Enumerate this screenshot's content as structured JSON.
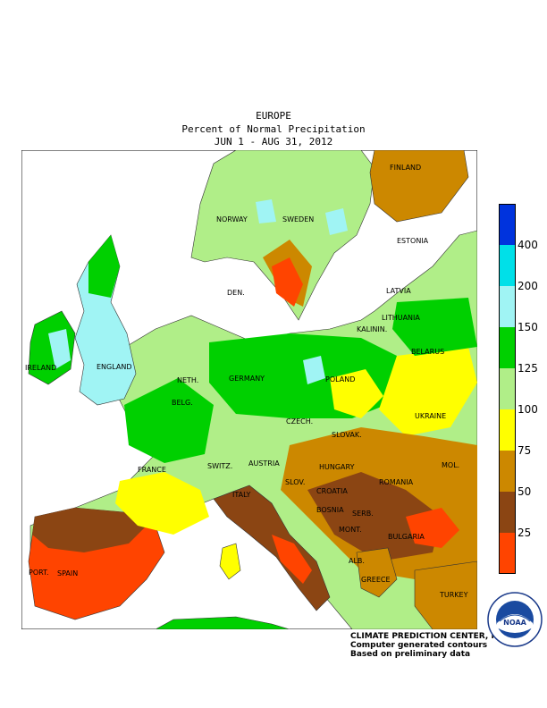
{
  "header": {
    "region": "EUROPE",
    "subtitle": "Percent of Normal Precipitation",
    "period": "JUN  1 - AUG 31, 2012"
  },
  "legend": {
    "ticks": [
      "400",
      "200",
      "150",
      "125",
      "100",
      "75",
      "50",
      "25"
    ],
    "colors": [
      "#0033dd",
      "#00e0e8",
      "#a0f4f4",
      "#00d000",
      "#b0ee88",
      "#ffff00",
      "#cc8800",
      "#8b4513",
      "#ff4400"
    ]
  },
  "map_labels": {
    "finland": "FINLAND",
    "norway": "NORWAY",
    "sweden": "SWEDEN",
    "estonia": "ESTONIA",
    "latvia": "LATVIA",
    "lithuania": "LITHUANIA",
    "belarus": "BELARUS",
    "ireland": "IRELAND",
    "england": "ENGLAND",
    "neth": "NETH.",
    "belg": "BELG.",
    "germany": "GERMANY",
    "poland": "POLAND",
    "czech": "CZECH.",
    "slovak": "SLOVAK.",
    "ukraine": "UKRAINE",
    "france": "FRANCE",
    "switz": "SWITZ.",
    "austria": "AUSTRIA",
    "hungary": "HUNGARY",
    "mol": "MOL.",
    "romania": "ROMANIA",
    "slov": "SLOV.",
    "croatia": "CROATIA",
    "bosnia": "BOSNIA",
    "serb": "SERB.",
    "mont": "MONT.",
    "bulgaria": "BULGARIA",
    "italy": "ITALY",
    "port": "PORT.",
    "spain": "SPAIN",
    "alb": "ALB.",
    "greece": "GREECE",
    "turkey": "TURKEY",
    "den": "DEN.",
    "kalinin": "KALININ."
  },
  "credit": {
    "line1": "CLIMATE PREDICTION CENTER, NOAA",
    "line2": "Computer generated contours",
    "line3": "Based on preliminary data"
  },
  "logo": {
    "text": "NOAA",
    "ring_text": "NATIONAL OCEANIC AND ATMOSPHERIC ADMINISTRATION · U.S. DEPARTMENT OF COMMERCE"
  }
}
